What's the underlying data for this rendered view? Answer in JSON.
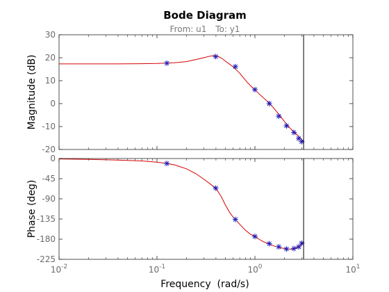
{
  "chart_data": {
    "type": "line",
    "title": "Bode Diagram",
    "subtitle": {
      "from_label": "From: u1",
      "to_label": "To: y1"
    },
    "xlabel": "Frequency  (rad/s)",
    "xscale": "log",
    "xlim": [
      0.01,
      10
    ],
    "x_ticks": [
      {
        "value": 0.01,
        "base": "10",
        "exp": "-2"
      },
      {
        "value": 0.1,
        "base": "10",
        "exp": "-1"
      },
      {
        "value": 1,
        "base": "10",
        "exp": "0"
      },
      {
        "value": 10,
        "base": "10",
        "exp": "1"
      }
    ],
    "vertical_marker_x": 3.14,
    "grid": false,
    "colors": {
      "curve": "#d40000",
      "markers": "#1a1ab8",
      "marker_line": "#000000",
      "axes": "#262626",
      "tick_labels": "#6a6a6a",
      "title": "#000000",
      "subtitle": "#7a7a7a"
    },
    "panels": [
      {
        "name": "magnitude",
        "ylabel": "Magnitude (dB)",
        "ylim": [
          -20,
          30
        ],
        "yticks": [
          "30",
          "20",
          "10",
          "0",
          "-10",
          "-20"
        ],
        "line": {
          "x": [
            0.01,
            0.02,
            0.04,
            0.07,
            0.1,
            0.15,
            0.2,
            0.25,
            0.3,
            0.35,
            0.38,
            0.42,
            0.46,
            0.5,
            0.55,
            0.6,
            0.65,
            0.7,
            0.8,
            0.9,
            1.0,
            1.1,
            1.2,
            1.4,
            1.6,
            1.8,
            2.0,
            2.2,
            2.4,
            2.6,
            2.8,
            3.0,
            3.1,
            3.14
          ],
          "y": [
            17.3,
            17.3,
            17.3,
            17.4,
            17.5,
            17.8,
            18.3,
            19.2,
            20.0,
            20.7,
            20.9,
            20.6,
            19.7,
            18.5,
            17.2,
            16.0,
            14.6,
            13.2,
            10.2,
            7.8,
            6.0,
            4.3,
            2.8,
            0.3,
            -2.6,
            -5.3,
            -7.8,
            -10.0,
            -11.6,
            -12.9,
            -14.4,
            -15.8,
            -16.3,
            -16.6
          ]
        },
        "markers": {
          "x": [
            0.126,
            0.398,
            0.631,
            1.0,
            1.4,
            1.75,
            2.1,
            2.5,
            2.8,
            3.0
          ],
          "y": [
            17.6,
            20.5,
            16.1,
            6.1,
            0.0,
            -5.5,
            -9.7,
            -12.6,
            -15.2,
            -16.6
          ]
        }
      },
      {
        "name": "phase",
        "ylabel": "Phase (deg)",
        "ylim": [
          -225,
          0
        ],
        "yticks": [
          "0",
          "-45",
          "-90",
          "-135",
          "-180",
          "-225"
        ],
        "line": {
          "x": [
            0.01,
            0.02,
            0.04,
            0.07,
            0.1,
            0.126,
            0.15,
            0.2,
            0.25,
            0.3,
            0.35,
            0.4,
            0.45,
            0.5,
            0.55,
            0.6,
            0.65,
            0.7,
            0.8,
            0.9,
            1.0,
            1.1,
            1.2,
            1.4,
            1.6,
            1.8,
            2.0,
            2.2,
            2.4,
            2.6,
            2.8,
            3.0,
            3.1,
            3.14
          ],
          "y": [
            -1,
            -2,
            -3.5,
            -5.5,
            -8,
            -11,
            -14,
            -23,
            -34,
            -46,
            -57,
            -67,
            -84,
            -104,
            -120,
            -131,
            -139,
            -147,
            -160,
            -169,
            -174,
            -180,
            -185,
            -191,
            -196,
            -199,
            -201,
            -202,
            -202,
            -200,
            -197,
            -192,
            -189,
            -187
          ]
        },
        "markers": {
          "x": [
            0.126,
            0.398,
            0.631,
            1.0,
            1.4,
            1.75,
            2.1,
            2.5,
            2.8,
            3.0
          ],
          "y": [
            -11,
            -66,
            -136,
            -174,
            -190,
            -197,
            -202,
            -201,
            -197,
            -189
          ]
        }
      }
    ]
  }
}
